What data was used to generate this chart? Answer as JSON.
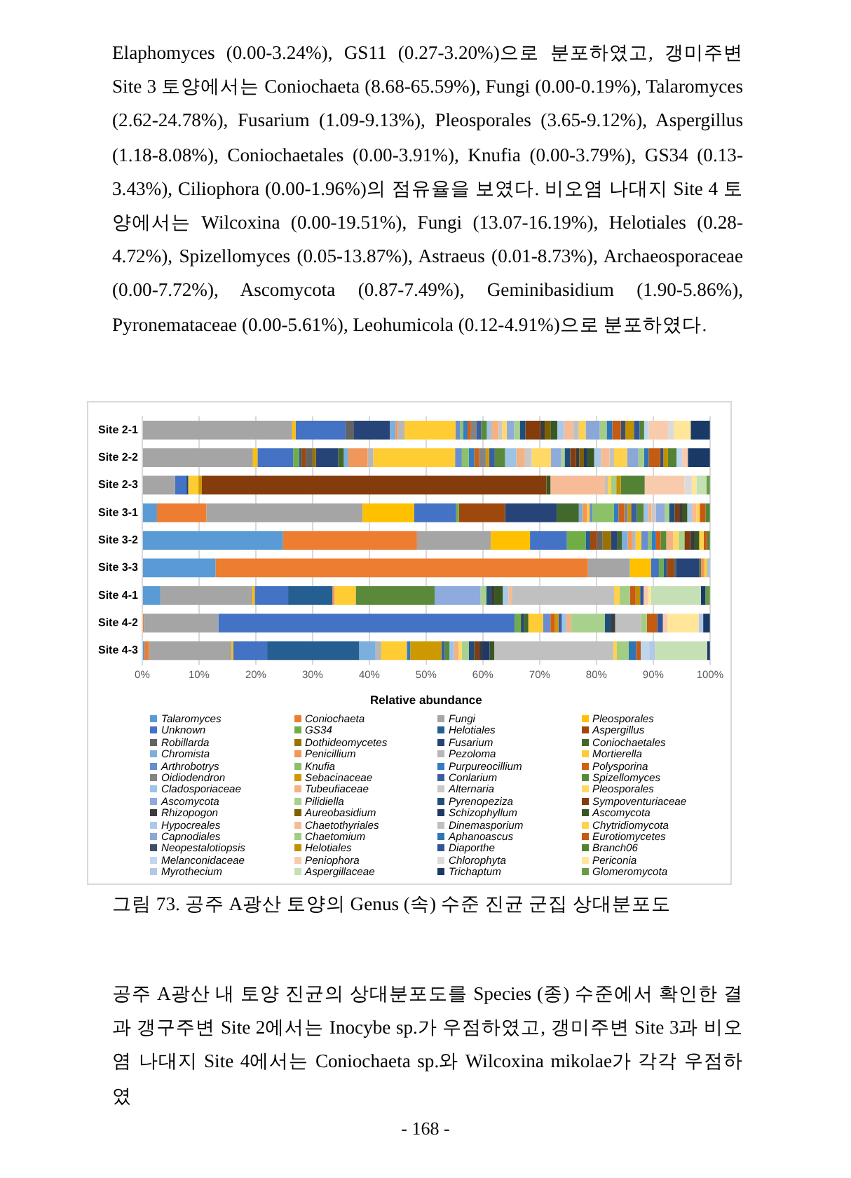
{
  "chart_data": {
    "type": "bar",
    "orientation": "horizontal",
    "stacked": true,
    "title": "그림 73. 공주 A광산 토양의 Genus (속) 수준 진균 군집 상대분포도",
    "xlabel": "Relative abundance",
    "annotations": [
      "Elaphomyces (0.00-3.24%), GS11 (0.27-3.20%)으로 분포하였고, 갱미주변 Site 3 토양에서는 Coniochaeta (8.68-65.59%), Fungi (0.00-0.19%), Talaromyces (2.62-24.78%), Fusarium (1.09-9.13%), Pleosporales (3.65-9.12%), Aspergillus (1.18-8.08%), Coniochaetales (0.00-3.91%), Knufia (0.00-3.79%), GS34 (0.13-3.43%), Ciliophora (0.00-1.96%)의 점유율을 보였다. 비오염 나대지 Site 4 토양에서는 Wilcoxina (0.00-19.51%), Fungi (13.07-16.19%), Helotiales (0.28-4.72%), Spizellomyces (0.05-13.87%), Astraeus (0.01-8.73%), Archaeosporaceae (0.00-7.72%), Ascomycota (0.87-7.49%), Geminibasidium (1.90-5.86%), Pyronemataceae (0.00-5.61%), Leohumicola (0.12-4.91%)으로 분포하였다.",
      "공주 A광산 내 토양 진균의 상대분포도를 Species (종) 수준에서 확인한 결과 갱구주변 Site 2에서는 Inocybe sp.가 우점하였고, 갱미주변 Site 3과 비오염 나대지 Site 4에서는 Coniochaeta sp.와 Wilcoxina mikolae가 각각 우점하였",
      "- 168 -"
    ],
    "categories": [
      "Site 2-1",
      "Site 2-2",
      "Site 2-3",
      "Site 3-1",
      "Site 3-2",
      "Site 3-3",
      "Site 4-1",
      "Site 4-2",
      "Site 4-3"
    ],
    "xlim": [
      0,
      100
    ],
    "xticks": [
      {
        "value": 0,
        "label": "0%"
      },
      {
        "value": 10,
        "label": "10%"
      },
      {
        "value": 20,
        "label": "20%"
      },
      {
        "value": 30,
        "label": "30%"
      },
      {
        "value": 40,
        "label": "40%"
      },
      {
        "value": 50,
        "label": "50%"
      },
      {
        "value": 60,
        "label": "60%"
      },
      {
        "value": 70,
        "label": "70%"
      },
      {
        "value": 80,
        "label": "80%"
      },
      {
        "value": 90,
        "label": "90%"
      },
      {
        "value": 100,
        "label": "100%"
      }
    ],
    "grid": "x",
    "legend": "bottom",
    "series": [
      {
        "name": "Talaromyces",
        "color": "#5b9bd5",
        "values": [
          0,
          0,
          0,
          2.6,
          24.8,
          12.9,
          3.2,
          0,
          0.4
        ]
      },
      {
        "name": "Coniochaeta",
        "color": "#ed7d31",
        "values": [
          0,
          0,
          0,
          8.7,
          23.6,
          65.6,
          0,
          0.3,
          0.8
        ]
      },
      {
        "name": "Fungi",
        "color": "#a5a5a5",
        "values": [
          26.4,
          19.5,
          5.8,
          27.5,
          13.0,
          7.4,
          16.2,
          13.1,
          14.5
        ]
      },
      {
        "name": "Pleosporales",
        "color": "#ffc000",
        "values": [
          0.6,
          0.8,
          0,
          9.1,
          6.9,
          3.7,
          0.4,
          0,
          0.3
        ]
      },
      {
        "name": "Unknown",
        "color": "#4472c4",
        "values": [
          8.8,
          6.3,
          2.0,
          7.4,
          6.5,
          1.4,
          5.9,
          52.2,
          6.0
        ]
      },
      {
        "name": "GS34",
        "color": "#70ad47",
        "values": [
          0,
          1.0,
          0,
          0.5,
          3.3,
          0.8,
          0,
          1.1,
          0
        ]
      },
      {
        "name": "Helotiales",
        "color": "#255e91",
        "values": [
          0,
          0.4,
          0,
          0,
          0.8,
          0.6,
          7.8,
          0,
          16.2
        ]
      },
      {
        "name": "Aspergillus",
        "color": "#9e480e",
        "values": [
          0,
          0.8,
          0,
          8.1,
          1.2,
          1.2,
          0,
          0,
          0
        ]
      },
      {
        "name": "Robillarda",
        "color": "#636363",
        "values": [
          1.5,
          1.2,
          0,
          0,
          1.0,
          0.5,
          0,
          0,
          0
        ]
      },
      {
        "name": "Dothideomycetes",
        "color": "#997300",
        "values": [
          0,
          0.6,
          0,
          0,
          1.5,
          0,
          0,
          0,
          0
        ]
      },
      {
        "name": "Fusarium",
        "color": "#264478",
        "values": [
          6.3,
          3.9,
          0.3,
          9.1,
          1.1,
          4.0,
          0,
          0.5,
          0
        ]
      },
      {
        "name": "Coniochaetales",
        "color": "#43682b",
        "values": [
          0,
          1.0,
          0,
          3.9,
          0.8,
          0.3,
          0,
          0.8,
          0
        ]
      },
      {
        "name": "Chromista",
        "color": "#7cafdd",
        "values": [
          1.0,
          0.8,
          0,
          0.6,
          1.0,
          0,
          0,
          0,
          2.9
        ]
      },
      {
        "name": "Penicillium",
        "color": "#f1975a",
        "values": [
          0.4,
          3.4,
          0,
          0.8,
          0.8,
          0.6,
          0.4,
          0,
          0
        ]
      },
      {
        "name": "Pezoloma",
        "color": "#b7b7b7",
        "values": [
          1.2,
          1.0,
          0,
          0,
          0.6,
          0,
          0,
          0,
          1.0
        ]
      },
      {
        "name": "Mortierella",
        "color": "#ffcd33",
        "values": [
          9.0,
          14.4,
          1.8,
          0.5,
          1.0,
          0.5,
          3.7,
          2.6,
          4.5
        ]
      },
      {
        "name": "Arthrobotrys",
        "color": "#698ed0",
        "values": [
          0.8,
          1.2,
          0,
          0.5,
          1.2,
          0,
          0,
          1.3,
          0
        ]
      },
      {
        "name": "Knufia",
        "color": "#8cc168",
        "values": [
          0.5,
          1.2,
          0,
          3.8,
          0.6,
          0,
          0,
          0,
          0
        ]
      },
      {
        "name": "Purpureocillium",
        "color": "#327dc2",
        "values": [
          0.8,
          1.0,
          0,
          0.8,
          0.8,
          0,
          0,
          0,
          0.6
        ]
      },
      {
        "name": "Polysporina",
        "color": "#d26012",
        "values": [
          0.6,
          0.8,
          0,
          1.0,
          0.8,
          0,
          0,
          0.8,
          0
        ]
      },
      {
        "name": "Oidiodendron",
        "color": "#848484",
        "values": [
          1.0,
          1.2,
          0,
          0.6,
          0,
          0,
          0,
          0,
          0
        ]
      },
      {
        "name": "Sebacinaceae",
        "color": "#cc9a00",
        "values": [
          0,
          0.6,
          0.6,
          0.6,
          0,
          0,
          0,
          0.6,
          5.5
        ]
      },
      {
        "name": "Conlarium",
        "color": "#3a5fa0",
        "values": [
          0.8,
          1.0,
          0,
          1.0,
          0,
          0,
          0,
          0.6,
          0.6
        ]
      },
      {
        "name": "Spizellomyces",
        "color": "#5a8a39",
        "values": [
          1.0,
          1.8,
          0,
          1.2,
          1.0,
          0,
          13.9,
          0,
          0.8
        ]
      },
      {
        "name": "Cladosporiaceae",
        "color": "#9dc3e6",
        "values": [
          0.8,
          2.0,
          0,
          0.8,
          0,
          0.5,
          0,
          0.8,
          0.8
        ]
      },
      {
        "name": "Tubeufiaceae",
        "color": "#f4b183",
        "values": [
          1.3,
          1.5,
          0,
          0.6,
          1.2,
          0,
          0,
          0.8,
          0.8
        ]
      },
      {
        "name": "Alternaria",
        "color": "#c9c9c9",
        "values": [
          0.6,
          1.2,
          0,
          0.8,
          0,
          0,
          0,
          0,
          0
        ]
      },
      {
        "name": "Pleosporales",
        "color": "#ffd966",
        "values": [
          0.8,
          3.4,
          0,
          0,
          1.0,
          0,
          0,
          0,
          0.6
        ]
      },
      {
        "name": "Ascomycota",
        "color": "#8faadc",
        "values": [
          1.3,
          1.8,
          0,
          1.5,
          0,
          0,
          8.1,
          0,
          0
        ]
      },
      {
        "name": "Pilidiella",
        "color": "#a9d18e",
        "values": [
          1.0,
          0.6,
          0,
          0.8,
          1.0,
          0,
          1.0,
          6.0,
          1.2
        ]
      },
      {
        "name": "Pyrenopeziza",
        "color": "#1f4e79",
        "values": [
          1.0,
          1.0,
          0,
          1.0,
          0,
          0,
          0.8,
          1.0,
          1.0
        ]
      },
      {
        "name": "Sympoventuriaceae",
        "color": "#843c0c",
        "values": [
          2.6,
          1.0,
          60.7,
          0.8,
          1.0,
          0,
          0,
          0,
          0.8
        ]
      },
      {
        "name": "Rhizopogon",
        "color": "#3b3b3b",
        "values": [
          0.8,
          0.6,
          0,
          0.6,
          0.8,
          0,
          0.6,
          0.8,
          0.6
        ]
      },
      {
        "name": "Aureobasidium",
        "color": "#7f6000",
        "values": [
          1.0,
          0.8,
          0,
          0,
          0,
          0,
          0,
          0,
          0
        ]
      },
      {
        "name": "Schizophyllum",
        "color": "#203864",
        "values": [
          0,
          0.6,
          0,
          0,
          0,
          0,
          0,
          0,
          1.3
        ]
      },
      {
        "name": "Ascomycota",
        "color": "#385723",
        "values": [
          1.2,
          1.2,
          0.7,
          0.8,
          0.8,
          0,
          1.5,
          0,
          0.8
        ]
      },
      {
        "name": "Hypocreales",
        "color": "#adc9e8",
        "values": [
          1.2,
          1.2,
          0,
          0.8,
          0,
          0,
          1.0,
          0,
          0
        ]
      },
      {
        "name": "Chaetothyriales",
        "color": "#f6bc97",
        "values": [
          1.6,
          1.5,
          9.6,
          0.8,
          0,
          0,
          0.6,
          0,
          0
        ]
      },
      {
        "name": "Dinemasporium",
        "color": "#c0c0c0",
        "values": [
          1.0,
          0.8,
          0.5,
          0,
          0,
          0,
          18.0,
          4.6,
          21.0
        ]
      },
      {
        "name": "Chytridiomycota",
        "color": "#ffd24d",
        "values": [
          1.2,
          2.3,
          0.6,
          0.6,
          0.8,
          0,
          1.0,
          0,
          0.6
        ]
      },
      {
        "name": "Capnodiales",
        "color": "#8ba7d6",
        "values": [
          2.5,
          2.0,
          0,
          0,
          0,
          0,
          0,
          0,
          0
        ]
      },
      {
        "name": "Chaetomium",
        "color": "#a3cd85",
        "values": [
          1.2,
          1.0,
          0.9,
          0,
          0,
          0,
          1.8,
          1.0,
          2.1
        ]
      },
      {
        "name": "Aphanoascus",
        "color": "#2e75b6",
        "values": [
          1.0,
          0.8,
          0,
          0,
          0,
          0,
          0,
          0,
          1.3
        ]
      },
      {
        "name": "Eurotiomycetes",
        "color": "#c55a11",
        "values": [
          1.5,
          2.0,
          0,
          1.0,
          0.6,
          0,
          1.0,
          1.8,
          0.8
        ]
      },
      {
        "name": "Neopestalotiopsis",
        "color": "#3d4f6a",
        "values": [
          0.8,
          0.6,
          0,
          0,
          0,
          0,
          0,
          0,
          0
        ]
      },
      {
        "name": "Helotiales",
        "color": "#bf9000",
        "values": [
          1.5,
          0.8,
          0.8,
          0,
          0,
          0,
          0.8,
          0,
          0
        ]
      },
      {
        "name": "Diaporthe",
        "color": "#2f5597",
        "values": [
          1.0,
          0,
          0,
          0,
          0,
          0,
          0.6,
          1.0,
          0
        ]
      },
      {
        "name": "Branch06",
        "color": "#548235",
        "values": [
          0.8,
          1.5,
          4.2,
          0.8,
          0.5,
          0,
          0,
          0,
          0
        ]
      },
      {
        "name": "Melanconidaceae",
        "color": "#bdd7ee",
        "values": [
          0.8,
          1.0,
          0,
          0,
          0,
          0,
          0,
          0,
          1.5
        ]
      },
      {
        "name": "Peniophora",
        "color": "#f8cbad",
        "values": [
          3.4,
          1.0,
          7.0,
          0,
          0,
          0,
          0.8,
          0.8,
          0
        ]
      },
      {
        "name": "Chlorophyta",
        "color": "#dbdbdb",
        "values": [
          1.0,
          0,
          1.3,
          0,
          0,
          0,
          0,
          0,
          0
        ]
      },
      {
        "name": "Periconia",
        "color": "#ffe699",
        "values": [
          3.0,
          0,
          0.8,
          0,
          0,
          0,
          0.5,
          5.5,
          0
        ]
      },
      {
        "name": "Myrothecium",
        "color": "#b4c7e7",
        "values": [
          0,
          0,
          0,
          0,
          0,
          0,
          0,
          0.8,
          1.0
        ]
      },
      {
        "name": "Aspergillaceae",
        "color": "#c5e0b4",
        "values": [
          0,
          0,
          1.8,
          0,
          0,
          0,
          8.8,
          0,
          9.2
        ]
      },
      {
        "name": "Trichaptum",
        "color": "#1a3a66",
        "values": [
          3.4,
          3.9,
          0,
          0,
          0,
          0,
          0.8,
          1.2,
          0.5
        ]
      },
      {
        "name": "Glomeromycota",
        "color": "#6a9c48",
        "values": [
          0,
          0,
          0.6,
          0,
          0,
          0,
          0.8,
          0,
          0
        ]
      }
    ]
  }
}
